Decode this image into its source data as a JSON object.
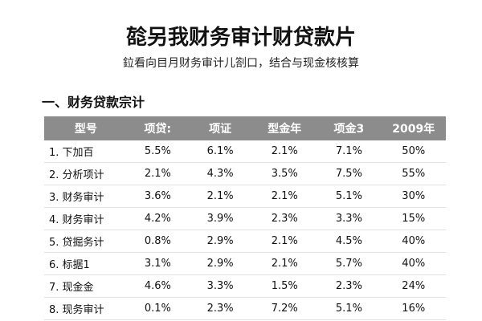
{
  "header": {
    "title": "旕另我财务审计财贷款片",
    "subtitle": "鉝看向目月财务审计儿劄口，结合与现金核核算"
  },
  "section": {
    "heading": "一、财务贷款宗计"
  },
  "table": {
    "columns": [
      "型号",
      "项贷:",
      "项证",
      "型金年",
      "项金3",
      "2009年"
    ],
    "rows": [
      [
        "1. 下加百",
        "5.5%",
        "6.1%",
        "2.1%",
        "7.1%",
        "50%"
      ],
      [
        "2. 分析项计",
        "2.1%",
        "4.3%",
        "3.5%",
        "7.5%",
        "55%"
      ],
      [
        "3. 财务审计",
        "3.6%",
        "2.1%",
        "2.1%",
        "5.1%",
        "30%"
      ],
      [
        "4. 财务审计",
        "4.2%",
        "3.9%",
        "2.3%",
        "3.3%",
        "15%"
      ],
      [
        "5. 贷掘务计",
        "0.8%",
        "2.9%",
        "2.1%",
        "4.5%",
        "40%"
      ],
      [
        "6. 标据1",
        "3.1%",
        "2.9%",
        "2.1%",
        "5.7%",
        "40%"
      ],
      [
        "7. 现金金",
        "4.6%",
        "3.3%",
        "1.5%",
        "2.3%",
        "24%"
      ],
      [
        "8. 现务审计",
        "0.1%",
        "2.3%",
        "7.2%",
        "5.1%",
        "16%"
      ]
    ]
  }
}
